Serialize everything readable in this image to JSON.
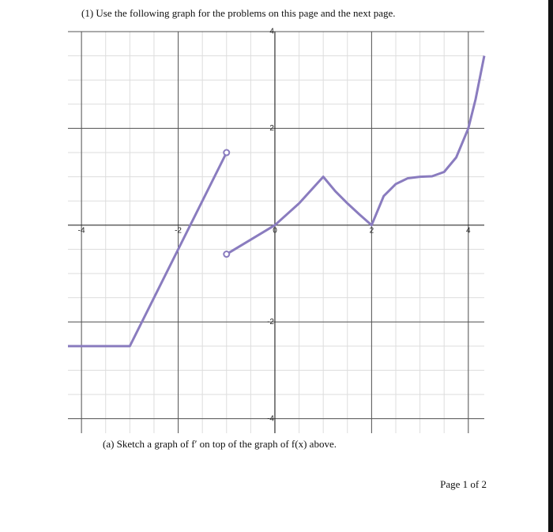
{
  "header": {
    "problem": "(1) Use the following graph for the problems on this page and the next page."
  },
  "chart_data": {
    "type": "line",
    "xlim": [
      -4.28,
      4.33
    ],
    "ylim": [
      -4.3,
      4
    ],
    "xticks": [
      -4,
      -2,
      0,
      2,
      4
    ],
    "yticks": [
      -4,
      -2,
      2,
      4
    ],
    "grid": true,
    "series": [
      {
        "color": "#8a7cbf",
        "x": [
          -4.28,
          -3,
          -1,
          null,
          -1,
          -0.5,
          0,
          0.5,
          1,
          1.25,
          1.5,
          1.75,
          2,
          2.25,
          2.5,
          2.75,
          3,
          3.25,
          3.5,
          3.75,
          4,
          4.15,
          4.33
        ],
        "values": [
          -2.5,
          -2.5,
          1.5,
          null,
          -0.6,
          -0.3,
          0,
          0.45,
          1,
          0.7,
          0.45,
          0.22,
          0,
          0.6,
          0.85,
          0.97,
          1,
          1.01,
          1.1,
          1.4,
          2,
          2.6,
          3.5
        ]
      }
    ],
    "open_points": [
      {
        "x": -1,
        "y": 1.5
      },
      {
        "x": -1,
        "y": -0.6
      }
    ]
  },
  "question": "(a) Sketch a graph of f′ on top of the graph of f(x) above.",
  "footer": "Page 1 of 2"
}
